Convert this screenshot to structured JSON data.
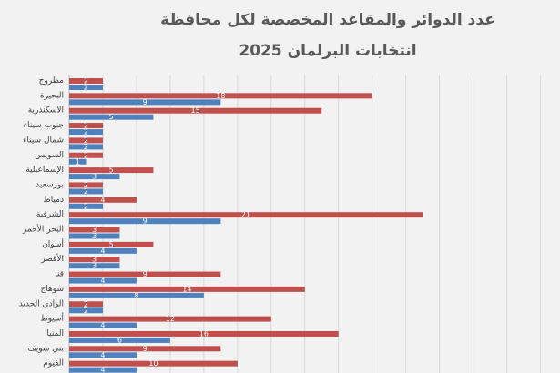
{
  "chart_data": {
    "type": "bar",
    "orientation": "horizontal",
    "title_line1": "عدد الدوائر والمقاعد المخصصة لكل محافظة",
    "title_line2": "انتخابات البرلمان 2025",
    "grid": true,
    "xlim": [
      0,
      29
    ],
    "categories": [
      "مطروح",
      "البحيرة",
      "الاسكندرية",
      "جنوب سيناء",
      "شمال سيناء",
      "السويس",
      "الإسماعيلية",
      "بورسعيد",
      "دمياط",
      "الشرقية",
      "البحر الأحمر",
      "أسوان",
      "الأقصر",
      "قنا",
      "سوهاج",
      "الوادي الجديد",
      "أسيوط",
      "المنيا",
      "بني سويف",
      "الفيوم"
    ],
    "series": [
      {
        "color": "#c0504d",
        "values": [
          2,
          18,
          15,
          2,
          2,
          2,
          5,
          2,
          4,
          21,
          3,
          5,
          3,
          9,
          14,
          2,
          12,
          16,
          9,
          10
        ]
      },
      {
        "color": "#4f81bd",
        "values": [
          2,
          9,
          5,
          2,
          2,
          1,
          3,
          2,
          2,
          9,
          3,
          4,
          3,
          4,
          8,
          2,
          4,
          6,
          4,
          4
        ]
      }
    ]
  }
}
